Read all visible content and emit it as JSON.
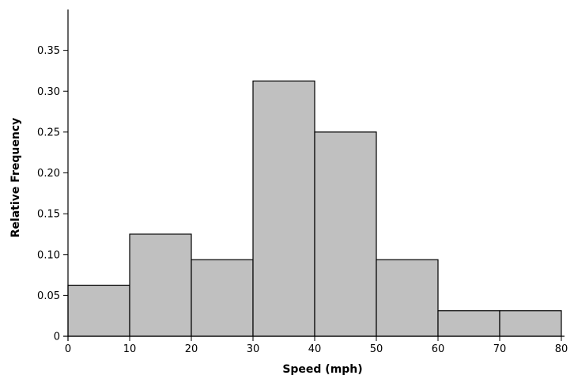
{
  "chart_data": {
    "type": "bar",
    "histogram": true,
    "title": "",
    "xlabel": "Speed (mph)",
    "ylabel": "Relative Frequency",
    "bins": [
      {
        "start": 0,
        "end": 10,
        "value": 0.0625
      },
      {
        "start": 10,
        "end": 20,
        "value": 0.125
      },
      {
        "start": 20,
        "end": 30,
        "value": 0.09375
      },
      {
        "start": 30,
        "end": 40,
        "value": 0.3125
      },
      {
        "start": 40,
        "end": 50,
        "value": 0.25
      },
      {
        "start": 50,
        "end": 60,
        "value": 0.09375
      },
      {
        "start": 60,
        "end": 70,
        "value": 0.03125
      },
      {
        "start": 70,
        "end": 80,
        "value": 0.03125
      }
    ],
    "xlim": [
      0,
      80
    ],
    "ylim": [
      0,
      0.4
    ],
    "xticks": [
      "0",
      "10",
      "20",
      "30",
      "40",
      "50",
      "60",
      "70",
      "80"
    ],
    "yticks": [
      "0",
      "0.05",
      "0.10",
      "0.15",
      "0.20",
      "0.25",
      "0.30",
      "0.35"
    ],
    "bar_color": "#c0c0c0",
    "grid": false,
    "legend": "none"
  }
}
